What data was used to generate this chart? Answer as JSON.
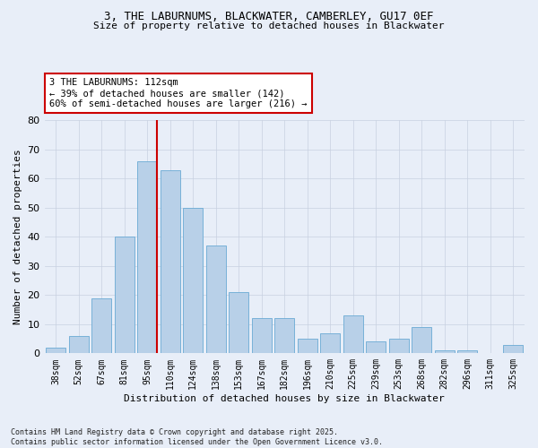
{
  "title_line1": "3, THE LABURNUMS, BLACKWATER, CAMBERLEY, GU17 0EF",
  "title_line2": "Size of property relative to detached houses in Blackwater",
  "xlabel": "Distribution of detached houses by size in Blackwater",
  "ylabel": "Number of detached properties",
  "categories": [
    "38sqm",
    "52sqm",
    "67sqm",
    "81sqm",
    "95sqm",
    "110sqm",
    "124sqm",
    "138sqm",
    "153sqm",
    "167sqm",
    "182sqm",
    "196sqm",
    "210sqm",
    "225sqm",
    "239sqm",
    "253sqm",
    "268sqm",
    "282sqm",
    "296sqm",
    "311sqm",
    "325sqm"
  ],
  "values": [
    2,
    6,
    19,
    40,
    66,
    63,
    50,
    37,
    21,
    12,
    12,
    5,
    7,
    13,
    4,
    5,
    9,
    1,
    1,
    0,
    3
  ],
  "bar_color": "#b8d0e8",
  "bar_edge_color": "#6aaad4",
  "highlight_color": "#cc0000",
  "annotation_text": "3 THE LABURNUMS: 112sqm\n← 39% of detached houses are smaller (142)\n60% of semi-detached houses are larger (216) →",
  "ylim": [
    0,
    80
  ],
  "yticks": [
    0,
    10,
    20,
    30,
    40,
    50,
    60,
    70,
    80
  ],
  "footer_line1": "Contains HM Land Registry data © Crown copyright and database right 2025.",
  "footer_line2": "Contains public sector information licensed under the Open Government Licence v3.0.",
  "background_color": "#e8eef8",
  "grid_color": "#c8d0e0"
}
